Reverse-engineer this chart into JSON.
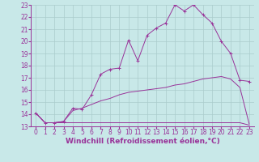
{
  "bg_color": "#c8e8e8",
  "line_color": "#993399",
  "grid_color": "#aacccc",
  "xlabel": "Windchill (Refroidissement éolien,°C)",
  "xlabel_fontsize": 6.5,
  "xtick_fontsize": 5.5,
  "ytick_fontsize": 5.5,
  "xlim": [
    -0.5,
    23.5
  ],
  "ylim": [
    13,
    23
  ],
  "yticks": [
    13,
    14,
    15,
    16,
    17,
    18,
    19,
    20,
    21,
    22,
    23
  ],
  "xticks": [
    0,
    1,
    2,
    3,
    4,
    5,
    6,
    7,
    8,
    9,
    10,
    11,
    12,
    13,
    14,
    15,
    16,
    17,
    18,
    19,
    20,
    21,
    22,
    23
  ],
  "line1_x": [
    0,
    1,
    2,
    3,
    4,
    5,
    6,
    7,
    8,
    9,
    10,
    11,
    12,
    13,
    14,
    15,
    16,
    17,
    18,
    19,
    20,
    21,
    22,
    23
  ],
  "line1_y": [
    14.1,
    13.3,
    13.3,
    13.4,
    14.5,
    14.4,
    15.6,
    17.3,
    17.7,
    17.8,
    20.1,
    18.4,
    20.5,
    21.1,
    21.5,
    23.0,
    22.5,
    23.0,
    22.2,
    21.5,
    20.0,
    19.0,
    16.8,
    16.7
  ],
  "line2_x": [
    0,
    1,
    2,
    3,
    4,
    5,
    6,
    7,
    8,
    9,
    10,
    11,
    12,
    13,
    14,
    15,
    16,
    17,
    18,
    19,
    20,
    21,
    22,
    23
  ],
  "line2_y": [
    14.1,
    13.3,
    13.3,
    13.4,
    14.3,
    14.5,
    14.8,
    15.1,
    15.3,
    15.6,
    15.8,
    15.9,
    16.0,
    16.1,
    16.2,
    16.4,
    16.5,
    16.7,
    16.9,
    17.0,
    17.1,
    16.9,
    16.2,
    13.2
  ],
  "line3_x": [
    0,
    1,
    2,
    3,
    4,
    5,
    6,
    7,
    8,
    9,
    10,
    11,
    12,
    13,
    14,
    15,
    16,
    17,
    18,
    19,
    20,
    21,
    22,
    23
  ],
  "line3_y": [
    14.1,
    13.3,
    13.3,
    13.3,
    13.3,
    13.3,
    13.3,
    13.3,
    13.3,
    13.3,
    13.3,
    13.3,
    13.3,
    13.3,
    13.3,
    13.3,
    13.3,
    13.3,
    13.3,
    13.3,
    13.3,
    13.3,
    13.3,
    13.1
  ]
}
